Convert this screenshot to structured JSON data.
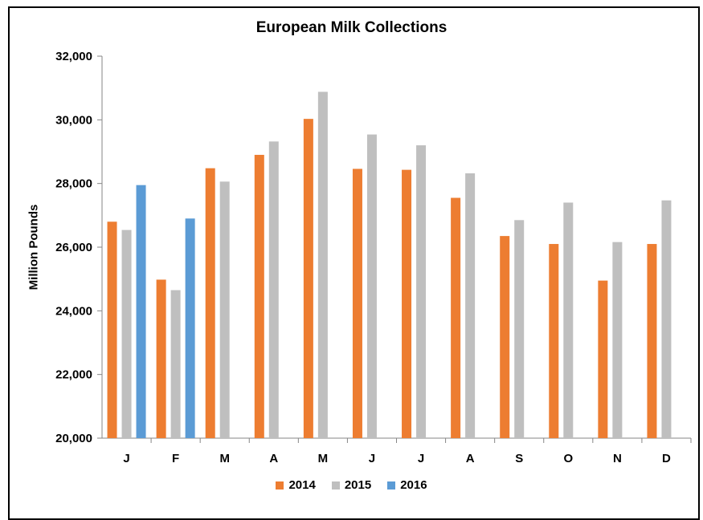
{
  "chart_data": {
    "type": "bar",
    "title": "European Milk Collections",
    "xlabel": "",
    "ylabel": "Million Pounds",
    "ylim": [
      20000,
      32000
    ],
    "yticks": [
      "20,000",
      "22,000",
      "24,000",
      "26,000",
      "28,000",
      "30,000",
      "32,000"
    ],
    "categories": [
      "J",
      "F",
      "M",
      "A",
      "M",
      "J",
      "J",
      "A",
      "S",
      "O",
      "N",
      "D"
    ],
    "series": [
      {
        "name": "2014",
        "color": "#ED7D31",
        "values": [
          26800,
          24980,
          28480,
          28900,
          30030,
          28460,
          28430,
          27550,
          26350,
          26100,
          24950,
          26100
        ]
      },
      {
        "name": "2015",
        "color": "#BFBFBF",
        "values": [
          26540,
          24650,
          28060,
          29320,
          30880,
          29540,
          29200,
          28320,
          26850,
          27400,
          26160,
          27470
        ]
      },
      {
        "name": "2016",
        "color": "#5B9BD5",
        "values": [
          27950,
          26900,
          null,
          null,
          null,
          null,
          null,
          null,
          null,
          null,
          null,
          null
        ]
      }
    ],
    "legend_position": "bottom",
    "grid": false
  }
}
